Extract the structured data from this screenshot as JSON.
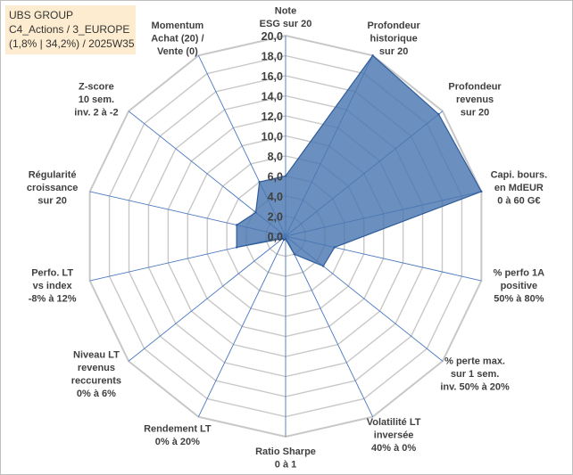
{
  "title_box": {
    "line1": "UBS GROUP",
    "line2": "C4_Actions / 3_EUROPE",
    "line3": "(1,8% | 34,2%) / 2025W35"
  },
  "chart_data": {
    "type": "radar",
    "title": "UBS GROUP",
    "r_range": [
      0,
      20
    ],
    "ticks": [
      "0,0",
      "2,0",
      "4,0",
      "6,0",
      "8,0",
      "10,0",
      "12,0",
      "14,0",
      "16,0",
      "18,0",
      "20,0"
    ],
    "axes": [
      {
        "label": [
          "Note",
          "ESG sur 20"
        ],
        "value": 6.0
      },
      {
        "label": [
          "Profondeur",
          "historique",
          "sur 20"
        ],
        "value": 20.0
      },
      {
        "label": [
          "Profondeur",
          "revenus",
          "sur 20"
        ],
        "value": 19.5
      },
      {
        "label": [
          "Capi. bours.",
          "en MdEUR",
          "0 à 60 G€"
        ],
        "value": 20.0
      },
      {
        "label": [
          "% perfo 1A",
          "positive",
          "50% à 80%"
        ],
        "value": 5.0
      },
      {
        "label": [
          "% perte max.",
          "sur 1 sem.",
          "inv. 50% à 20%"
        ],
        "value": 4.8
      },
      {
        "label": [
          "Volatilité LT",
          "inversée",
          "40% à 0%"
        ],
        "value": 2.0
      },
      {
        "label": [
          "Ratio Sharpe",
          "0 à 1"
        ],
        "value": 0.3
      },
      {
        "label": [
          "Rendement LT",
          "0% à 20%"
        ],
        "value": 0.4
      },
      {
        "label": [
          "Niveau LT",
          "revenus",
          "reccurents",
          "0% à 6%"
        ],
        "value": 0.4
      },
      {
        "label": [
          "Perfo. LT",
          "vs index",
          "-8% à 12%"
        ],
        "value": 5.0
      },
      {
        "label": [
          "Régularité",
          "croissance",
          "sur 20"
        ],
        "value": 5.0
      },
      {
        "label": [
          "Z-score",
          "10 sem.",
          "inv. 2 à -2"
        ],
        "value": 3.8
      },
      {
        "label": [
          "Momentum",
          "Achat (20) /",
          "Vente (0)"
        ],
        "value": 6.0
      }
    ],
    "series": [
      {
        "values": [
          6.0,
          20.0,
          19.5,
          20.0,
          5.0,
          4.8,
          2.0,
          0.3,
          0.4,
          0.4,
          5.0,
          5.0,
          3.8,
          6.0
        ]
      }
    ],
    "fill_color": "#4a76b0",
    "line_color": "#2f5d9a",
    "grid_color": "#c8c8c8",
    "spoke_color": "#4a78c0",
    "legend": "none"
  }
}
